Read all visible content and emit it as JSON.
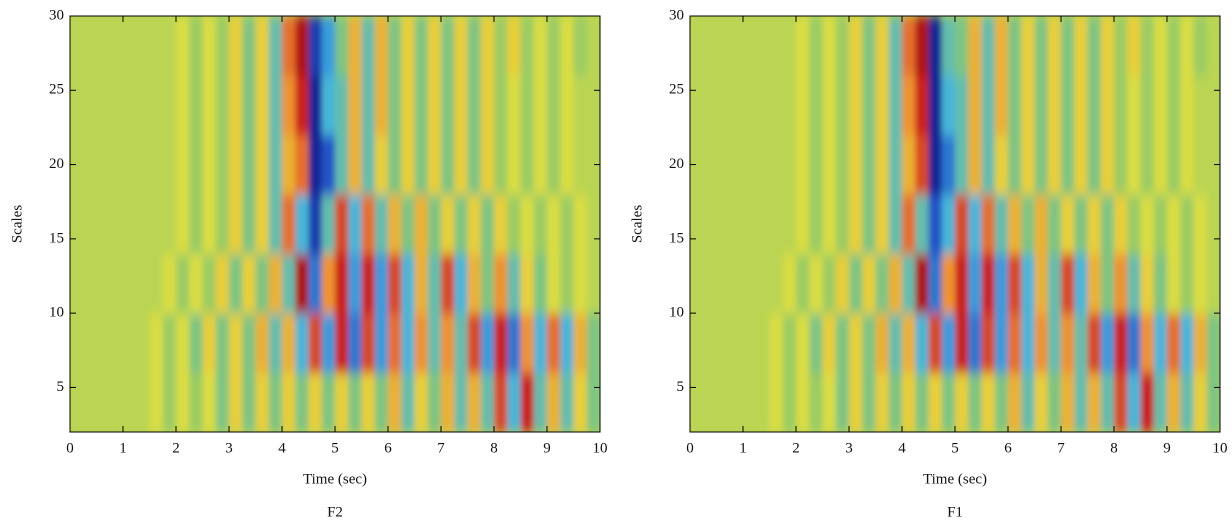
{
  "chart_data": [
    {
      "type": "heatmap",
      "caption": "F2",
      "xlabel": "Time (sec)",
      "ylabel": "Scales",
      "xlim": [
        0,
        10
      ],
      "ylim": [
        2,
        30
      ],
      "xticks": [
        0,
        1,
        2,
        3,
        4,
        5,
        6,
        7,
        8,
        9,
        10
      ],
      "yticks": [
        5,
        10,
        15,
        20,
        25,
        30
      ],
      "x": [
        0.125,
        0.375,
        0.625,
        0.875,
        1.125,
        1.375,
        1.625,
        1.875,
        2.125,
        2.375,
        2.625,
        2.875,
        3.125,
        3.375,
        3.625,
        3.875,
        4.125,
        4.375,
        4.625,
        4.875,
        5.125,
        5.375,
        5.625,
        5.875,
        6.125,
        6.375,
        6.625,
        6.875,
        7.125,
        7.375,
        7.625,
        7.875,
        8.125,
        8.375,
        8.625,
        8.875,
        9.125,
        9.375,
        9.625,
        9.875
      ],
      "y": [
        4,
        8,
        12,
        16,
        20,
        24,
        28
      ],
      "zlim": [
        -10,
        10
      ],
      "colorscale": [
        "#12127a",
        "#1f4fc4",
        "#3fb4e4",
        "#8ec96a",
        "#e6e03c",
        "#ef8a2c",
        "#c81e1e",
        "#6e0c0c"
      ],
      "z": [
        [
          0,
          0,
          0,
          0,
          0,
          0,
          1,
          -1,
          1,
          -1,
          1,
          -2,
          2,
          -2,
          2,
          -2,
          2,
          -2,
          2,
          -2,
          2,
          -2,
          2,
          -2,
          3,
          -3,
          2,
          -2,
          3,
          -3,
          3,
          -3,
          6,
          -4,
          7,
          -3,
          3,
          -3,
          2,
          -2
        ],
        [
          0,
          0,
          0,
          0,
          0,
          0,
          1,
          -1,
          1,
          -2,
          2,
          -2,
          2,
          -2,
          3,
          -3,
          3,
          -4,
          6,
          -5,
          7,
          -6,
          6,
          -5,
          5,
          -4,
          4,
          -3,
          4,
          -3,
          6,
          -5,
          7,
          -6,
          4,
          -4,
          5,
          -4,
          3,
          -2
        ],
        [
          0,
          0,
          0,
          0,
          0,
          0,
          0,
          1,
          -1,
          1,
          -1,
          2,
          -2,
          2,
          -2,
          3,
          -3,
          8,
          -6,
          4,
          7,
          -5,
          7,
          -5,
          6,
          -4,
          3,
          -3,
          6,
          -4,
          3,
          -2,
          4,
          -3,
          2,
          -2,
          1,
          -1,
          1,
          0
        ],
        [
          0,
          0,
          0,
          0,
          0,
          0,
          0,
          0,
          1,
          -1,
          1,
          -1,
          2,
          -2,
          2,
          -3,
          5,
          -4,
          -8,
          -3,
          6,
          -4,
          5,
          -3,
          3,
          -2,
          3,
          -2,
          2,
          -2,
          2,
          -2,
          2,
          -1,
          1,
          -1,
          1,
          -1,
          1,
          0
        ],
        [
          0,
          0,
          0,
          0,
          0,
          0,
          0,
          0,
          1,
          -1,
          1,
          -1,
          2,
          -2,
          2,
          -3,
          3,
          5,
          -9,
          -7,
          -3,
          3,
          -3,
          2,
          -2,
          2,
          -2,
          2,
          -2,
          2,
          -2,
          2,
          -1,
          1,
          -1,
          1,
          -1,
          1,
          0,
          0
        ],
        [
          0,
          0,
          0,
          0,
          0,
          0,
          0,
          0,
          1,
          -1,
          1,
          -1,
          2,
          -2,
          2,
          -3,
          4,
          7,
          -9,
          -4,
          -3,
          3,
          -3,
          3,
          -2,
          2,
          -2,
          2,
          -2,
          2,
          -2,
          2,
          -1,
          1,
          -1,
          1,
          -1,
          1,
          0,
          0
        ],
        [
          0,
          0,
          0,
          0,
          0,
          0,
          0,
          0,
          1,
          -1,
          1,
          -1,
          2,
          -2,
          2,
          -3,
          5,
          8,
          -8,
          -5,
          -2,
          3,
          -3,
          3,
          -2,
          2,
          -2,
          2,
          -2,
          2,
          -2,
          2,
          -1,
          2,
          -1,
          1,
          -1,
          1,
          -1,
          0
        ]
      ]
    },
    {
      "type": "heatmap",
      "caption": "F1",
      "xlabel": "Time (sec)",
      "ylabel": "Scales",
      "xlim": [
        0,
        10
      ],
      "ylim": [
        2,
        30
      ],
      "xticks": [
        0,
        1,
        2,
        3,
        4,
        5,
        6,
        7,
        8,
        9,
        10
      ],
      "yticks": [
        5,
        10,
        15,
        20,
        25,
        30
      ],
      "x": [
        0.125,
        0.375,
        0.625,
        0.875,
        1.125,
        1.375,
        1.625,
        1.875,
        2.125,
        2.375,
        2.625,
        2.875,
        3.125,
        3.375,
        3.625,
        3.875,
        4.125,
        4.375,
        4.625,
        4.875,
        5.125,
        5.375,
        5.625,
        5.875,
        6.125,
        6.375,
        6.625,
        6.875,
        7.125,
        7.375,
        7.625,
        7.875,
        8.125,
        8.375,
        8.625,
        8.875,
        9.125,
        9.375,
        9.625,
        9.875
      ],
      "y": [
        4,
        8,
        12,
        16,
        20,
        24,
        28
      ],
      "zlim": [
        -10,
        10
      ],
      "colorscale": [
        "#12127a",
        "#1f4fc4",
        "#3fb4e4",
        "#8ec96a",
        "#e6e03c",
        "#ef8a2c",
        "#c81e1e",
        "#6e0c0c"
      ],
      "z": [
        [
          0,
          0,
          0,
          0,
          0,
          0,
          1,
          -1,
          1,
          -1,
          1,
          -2,
          2,
          -2,
          2,
          -2,
          2,
          -2,
          2,
          -2,
          2,
          -2,
          2,
          -2,
          3,
          -3,
          2,
          -2,
          3,
          -3,
          3,
          -3,
          6,
          -4,
          7,
          -3,
          3,
          -3,
          2,
          -2
        ],
        [
          0,
          0,
          0,
          0,
          0,
          0,
          1,
          -1,
          1,
          -2,
          2,
          -2,
          2,
          -2,
          3,
          -3,
          3,
          -4,
          6,
          -5,
          7,
          -6,
          6,
          -5,
          5,
          -4,
          4,
          -3,
          4,
          -3,
          6,
          -5,
          7,
          -6,
          4,
          -4,
          5,
          -4,
          3,
          -2
        ],
        [
          0,
          0,
          0,
          0,
          0,
          0,
          0,
          1,
          -1,
          1,
          -1,
          2,
          -2,
          2,
          -2,
          3,
          -3,
          8,
          -6,
          4,
          7,
          -5,
          7,
          -5,
          6,
          -4,
          3,
          -3,
          6,
          -4,
          3,
          -2,
          4,
          -3,
          2,
          -2,
          1,
          -1,
          1,
          0
        ],
        [
          0,
          0,
          0,
          0,
          0,
          0,
          0,
          0,
          1,
          -1,
          1,
          -1,
          2,
          -2,
          2,
          -3,
          5,
          -3,
          -7,
          -4,
          6,
          -4,
          5,
          -3,
          3,
          -2,
          3,
          -2,
          2,
          -2,
          2,
          -2,
          2,
          -1,
          1,
          -1,
          1,
          -1,
          1,
          0
        ],
        [
          0,
          0,
          0,
          0,
          0,
          0,
          0,
          0,
          1,
          -1,
          1,
          -1,
          2,
          -2,
          2,
          -3,
          3,
          6,
          -9,
          -6,
          -3,
          3,
          -3,
          2,
          -2,
          2,
          -2,
          2,
          -2,
          2,
          -2,
          2,
          -1,
          1,
          -1,
          1,
          -1,
          1,
          0,
          0
        ],
        [
          0,
          0,
          0,
          0,
          0,
          0,
          0,
          0,
          1,
          -1,
          1,
          -1,
          2,
          -2,
          2,
          -3,
          4,
          7,
          -9,
          -4,
          -3,
          3,
          -3,
          3,
          -2,
          2,
          -2,
          2,
          -2,
          2,
          -2,
          2,
          -1,
          1,
          -1,
          1,
          -1,
          1,
          0,
          0
        ],
        [
          0,
          0,
          0,
          0,
          0,
          0,
          0,
          0,
          1,
          -1,
          1,
          -1,
          2,
          -2,
          2,
          -3,
          5,
          8,
          -9,
          -3,
          -2,
          3,
          -3,
          3,
          -2,
          2,
          -2,
          2,
          -2,
          2,
          -2,
          2,
          -1,
          2,
          -1,
          1,
          -1,
          1,
          -1,
          0
        ]
      ]
    }
  ]
}
